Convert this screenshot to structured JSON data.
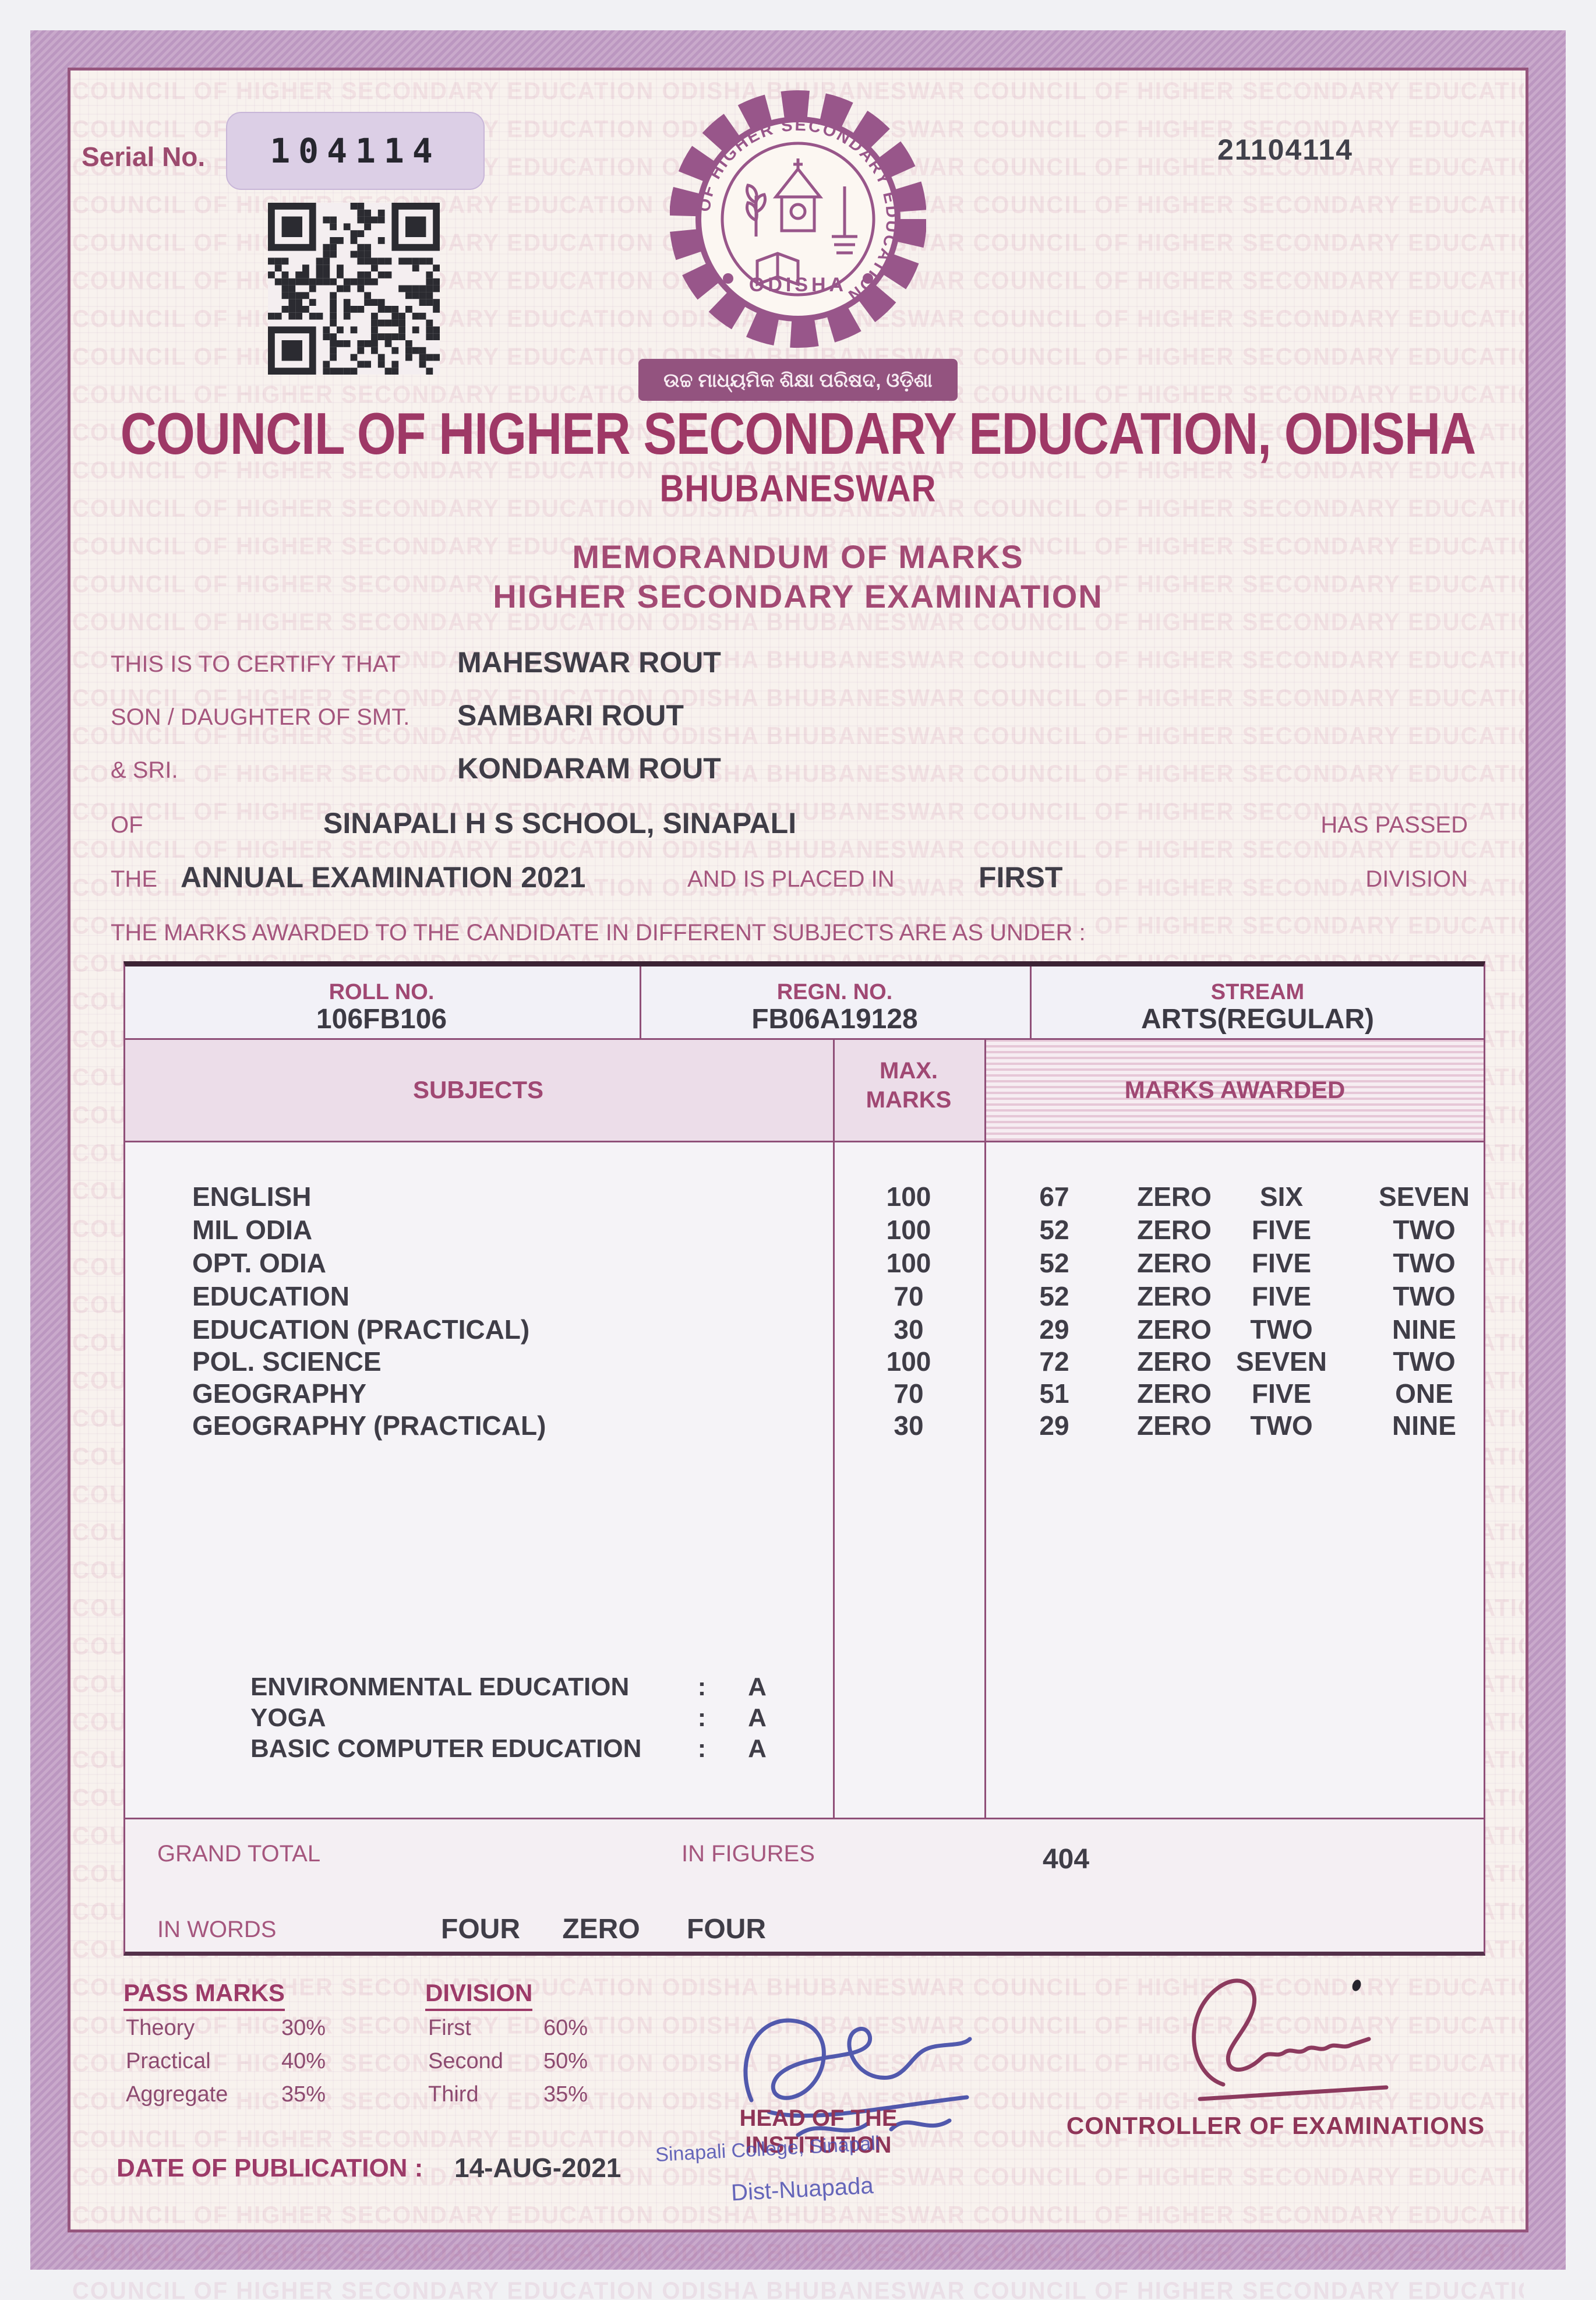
{
  "colors": {
    "accent_maroon": "#9c3a68",
    "label_maroon": "#a0517a",
    "text_dark": "#3f3d47",
    "stamp_blue": "#4f4fae",
    "border_pink": "#c4a3c8",
    "logo_purple": "#98568a"
  },
  "header": {
    "serial_label": "Serial No.",
    "serial_value": "104114",
    "certificate_no": "21104114",
    "org_name": "COUNCIL OF HIGHER SECONDARY EDUCATION, ODISHA",
    "org_city": "BHUBANESWAR",
    "doc_title": "MEMORANDUM OF MARKS",
    "doc_subtitle": "HIGHER SECONDARY EXAMINATION",
    "logo": {
      "ring_text": "COUNCIL OF HIGHER SECONDARY EDUCATION",
      "state": "ODISHA",
      "banner": "ଉଚ୍ଚ ମାଧ୍ୟମିକ ଶିକ୍ଷା ପରିଷଦ, ଓଡ଼ିଶା"
    }
  },
  "certify": {
    "l1": "THIS IS TO CERTIFY THAT",
    "candidate": "MAHESWAR ROUT",
    "l2": "SON / DAUGHTER OF SMT.",
    "mother": "SAMBARI ROUT",
    "l3": "& SRI.",
    "father": "KONDARAM ROUT",
    "l4": "OF",
    "school": "SINAPALI H S SCHOOL, SINAPALI",
    "l4b": "HAS PASSED",
    "l5": "THE",
    "exam": "ANNUAL EXAMINATION 2021",
    "l5b": "AND IS PLACED IN",
    "division": "FIRST",
    "l5c": "DIVISION",
    "intro": "THE MARKS AWARDED TO THE CANDIDATE IN DIFFERENT SUBJECTS ARE AS UNDER :"
  },
  "summary": {
    "roll_label": "ROLL NO.",
    "roll": "106FB106",
    "regn_label": "REGN. NO.",
    "regn": "FB06A19128",
    "stream_label": "STREAM",
    "stream": "ARTS(REGULAR)"
  },
  "marks": {
    "col_subjects": "SUBJECTS",
    "col_max1": "MAX.",
    "col_max2": "MARKS",
    "col_awarded": "MARKS AWARDED",
    "rows": [
      {
        "subject": "ENGLISH",
        "max": "100",
        "fig": "67",
        "words": [
          "ZERO",
          "SIX",
          "SEVEN"
        ]
      },
      {
        "subject": "MIL ODIA",
        "max": "100",
        "fig": "52",
        "words": [
          "ZERO",
          "FIVE",
          "TWO"
        ]
      },
      {
        "subject": "OPT. ODIA",
        "max": "100",
        "fig": "52",
        "words": [
          "ZERO",
          "FIVE",
          "TWO"
        ]
      },
      {
        "subject": "EDUCATION",
        "max": "70",
        "fig": "52",
        "words": [
          "ZERO",
          "FIVE",
          "TWO"
        ]
      },
      {
        "subject": "EDUCATION (PRACTICAL)",
        "max": "30",
        "fig": "29",
        "words": [
          "ZERO",
          "TWO",
          "NINE"
        ]
      },
      {
        "subject": "POL. SCIENCE",
        "max": "100",
        "fig": "72",
        "words": [
          "ZERO",
          "SEVEN",
          "TWO"
        ]
      },
      {
        "subject": "GEOGRAPHY",
        "max": "70",
        "fig": "51",
        "words": [
          "ZERO",
          "FIVE",
          "ONE"
        ]
      },
      {
        "subject": "GEOGRAPHY (PRACTICAL)",
        "max": "30",
        "fig": "29",
        "words": [
          "ZERO",
          "TWO",
          "NINE"
        ]
      }
    ],
    "additional": [
      {
        "subject": "ENVIRONMENTAL EDUCATION",
        "sep": ":",
        "grade": "A"
      },
      {
        "subject": "YOGA",
        "sep": ":",
        "grade": "A"
      },
      {
        "subject": "BASIC COMPUTER EDUCATION",
        "sep": ":",
        "grade": "A"
      }
    ],
    "grand_total_label": "GRAND TOTAL",
    "in_figures_label": "IN FIGURES",
    "total": "404",
    "in_words_label": "IN WORDS",
    "total_words": [
      "FOUR",
      "ZERO",
      "FOUR"
    ]
  },
  "footer": {
    "pass_marks_title": "PASS MARKS",
    "pass_marks": [
      {
        "k": "Theory",
        "v": "30%"
      },
      {
        "k": "Practical",
        "v": "40%"
      },
      {
        "k": "Aggregate",
        "v": "35%"
      }
    ],
    "division_title": "DIVISION",
    "division": [
      {
        "k": "First",
        "v": "60%"
      },
      {
        "k": "Second",
        "v": "50%"
      },
      {
        "k": "Third",
        "v": "35%"
      }
    ],
    "publication_label": "DATE OF PUBLICATION :",
    "publication_date": "14-AUG-2021",
    "head_title_1": "HEAD OF THE",
    "head_title_2": "INSTITUTION",
    "stamp_line1": "Sinapali College, Sinapali",
    "stamp_line2": "Dist-Nuapada",
    "controller_title": "CONTROLLER OF EXAMINATIONS"
  },
  "watermark_text": "COUNCIL OF HIGHER SECONDARY EDUCATION ODISHA BHUBANESWAR "
}
